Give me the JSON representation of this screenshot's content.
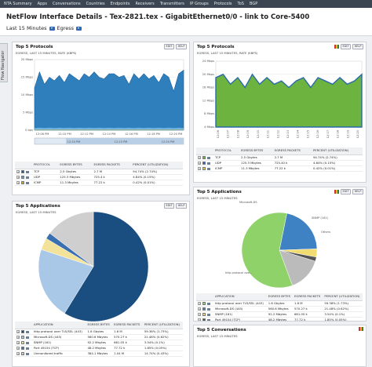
{
  "nav": [
    "NTA Summary",
    "Apps",
    "Conversations",
    "Countries",
    "Endpoints",
    "Receivers",
    "Transmitters",
    "IP Groups",
    "Protocols",
    "ToS",
    "BGP"
  ],
  "header": {
    "title": "NetFlow Interface Details - Tex-2821.tex - GigabitEthernet0/0 - link to Core-5400",
    "time_range": "Last 15 Minutes",
    "direction": "Egress"
  },
  "sidebar": {
    "label": "Flow Navigator"
  },
  "panels": {
    "p1": {
      "title": "Top 5 Protocols",
      "subtitle": "EGRESS, LAST 15 MINUTES, RATE (KBPS)",
      "edit": "EDIT",
      "help": "HELP",
      "y_labels": [
        "20 Mbps",
        "15 Mbps",
        "10 Mbps",
        "5 Mbps",
        "0 bps"
      ],
      "x_labels": [
        "12:08 PM",
        "12:10 PM",
        "12:12 PM",
        "12:14 PM",
        "12:16 PM",
        "12:18 PM",
        "12:20 PM"
      ],
      "nav_labels": [
        "12:10 PM",
        "12:15 PM",
        "12:20 PM"
      ],
      "headers": [
        "PROTOCOL",
        "EGRESS BYTES",
        "EGRESS PACKETS",
        "PERCENT (UTILIZATION)"
      ],
      "rows": [
        {
          "name": "TCP",
          "bytes": "2.5 Gbytes",
          "packets": "2.7 M",
          "pct": "94.74% (2.74%)",
          "color": "#1f5f99"
        },
        {
          "name": "UDP",
          "bytes": "125.3 Mbytes",
          "packets": "725.4 k",
          "pct": "4.84% (0.15%)",
          "color": "#5aa0d8"
        },
        {
          "name": "ICMP",
          "bytes": "11.3 Mbytes",
          "packets": "77.22 k",
          "pct": "0.42% (0.01%)",
          "color": "#c9a93c"
        }
      ]
    },
    "p2": {
      "title": "Top 5 Protocols",
      "subtitle": "EGRESS, LAST 15 MINUTES, RATE (KBPS)",
      "edit": "EDIT",
      "help": "HELP",
      "y_labels": [
        "24 Mbps",
        "20 Mbps",
        "16 Mbps",
        "12 Mbps",
        "8 Mbps",
        "4 Mbps"
      ],
      "x_labels": [
        "12:06",
        "12:07",
        "12:08",
        "12:09",
        "12:10",
        "12:11",
        "12:12",
        "12:13",
        "12:14",
        "12:15",
        "12:16",
        "12:17",
        "12:18",
        "12:19",
        "12:20"
      ],
      "headers": [
        "PROTOCOL",
        "EGRESS BYTES",
        "EGRESS PACKETS",
        "PERCENT (UTILIZATION)"
      ],
      "rows": [
        {
          "name": "TCP",
          "bytes": "2.5 Gbytes",
          "packets": "2.7 M",
          "pct": "94.74% (2.74%)",
          "color": "#6db33f"
        },
        {
          "name": "UDP",
          "bytes": "125.3 Mbytes",
          "packets": "725.40 k",
          "pct": "4.84% (0.15%)",
          "color": "#2a6aa8"
        },
        {
          "name": "ICMP",
          "bytes": "11.3 Mbytes",
          "packets": "77.22 k",
          "pct": "0.42% (0.01%)",
          "color": "#e8c93a"
        }
      ]
    },
    "p3": {
      "title": "Top 5 Applications",
      "subtitle": "EGRESS, LAST 15 MINUTES",
      "edit": "EDIT",
      "help": "HELP",
      "headers": [
        "APPLICATION",
        "EGRESS BYTES",
        "EGRESS PACKETS",
        "PERCENT (UTILIZATION)"
      ],
      "rows": [
        {
          "name": "http protocol over TLS/SSL (443)",
          "bytes": "1.6 Gbytes",
          "packets": "1.6 M",
          "pct": "59.38% (1.73%)",
          "color": "#1a4d80"
        },
        {
          "name": "Microsoft-DS (445)",
          "bytes": "560.6 Mbytes",
          "packets": "570.27 k",
          "pct": "21.48% (0.62%)",
          "color": "#a9c8e8"
        },
        {
          "name": "SNMP (161)",
          "bytes": "92.2 Mbytes",
          "packets": "661.05 k",
          "pct": "3.54% (0.1%)",
          "color": "#f2e29a"
        },
        {
          "name": "Port 49154 (TCP)",
          "bytes": "48.2 Mbytes",
          "packets": "77.72 k",
          "pct": "1.85% (0.05%)",
          "color": "#3a6fb0"
        },
        {
          "name": "Unmonitored traffic",
          "bytes": "384.1 Mbytes",
          "packets": "1.04 M",
          "pct": "14.74% (0.43%)",
          "color": "#cfcfcf"
        }
      ]
    },
    "p4": {
      "title": "Top 5 Applications",
      "subtitle": "EGRESS, LAST 15 MINUTES",
      "edit": "EDIT",
      "help": "HELP",
      "pie_labels": [
        "Microsoft-DS",
        "SNMP (161)",
        "Others",
        "http protocol ove..."
      ],
      "headers": [
        "APPLICATION",
        "EGRESS BYTES",
        "EGRESS PACKETS",
        "PERCENT (UTILIZATION)"
      ],
      "rows": [
        {
          "name": "http protocol over TLS/SSL (443)",
          "bytes": "1.6 Gbytes",
          "packets": "1.6 M",
          "pct": "59.38% (1.73%)",
          "color": "#8fd26a"
        },
        {
          "name": "Microsoft-DS (445)",
          "bytes": "560.6 Mbytes",
          "packets": "570.27 k",
          "pct": "21.48% (0.62%)",
          "color": "#3e82c4"
        },
        {
          "name": "SNMP (161)",
          "bytes": "92.2 Mbytes",
          "packets": "661.05 k",
          "pct": "3.54% (0.1%)",
          "color": "#f0dc70"
        },
        {
          "name": "Port 49154 (TCP)",
          "bytes": "48.2 Mbytes",
          "packets": "77.72 k",
          "pct": "1.85% (0.05%)",
          "color": "#555555"
        },
        {
          "name": "Unmonitored traffic",
          "bytes": "384.1 Mbytes",
          "packets": "1.04 M",
          "pct": "14.74% (0.43%)",
          "color": "#bbbbbb"
        }
      ]
    },
    "p5": {
      "title": "Top 5 Conversations",
      "subtitle": "EGRESS, LAST 15 MINUTES"
    }
  },
  "chart_data": [
    {
      "type": "area",
      "title": "Top 5 Protocols",
      "series": [
        {
          "name": "TCP",
          "values": [
            12,
            16.5,
            13,
            15,
            14,
            15.5,
            13.5,
            16,
            15,
            14,
            16,
            15,
            16.5,
            15,
            14.5,
            16,
            16,
            15,
            15.5,
            13,
            16,
            14.5,
            16,
            14.5,
            15.5,
            13.5,
            16,
            15,
            11,
            16,
            17
          ]
        },
        {
          "name": "UDP",
          "values": [
            0.6,
            0.7,
            0.6,
            0.7,
            0.6,
            0.7,
            0.6,
            0.7,
            0.6,
            0.7,
            0.6,
            0.7,
            0.6,
            0.7,
            0.6,
            0.7,
            0.6,
            0.7,
            0.6,
            0.7,
            0.6,
            0.7,
            0.6,
            0.7,
            0.6,
            0.7,
            0.6,
            0.7,
            0.6,
            0.7,
            0.6
          ]
        },
        {
          "name": "ICMP",
          "values": [
            0.1,
            0.1,
            0.1,
            0.1,
            0.1,
            0.1,
            0.1,
            0.1,
            0.1,
            0.1,
            0.1,
            0.1,
            0.1,
            0.1,
            0.1,
            0.1,
            0.1,
            0.1,
            0.1,
            0.1,
            0.1,
            0.1,
            0.1,
            0.1,
            0.1,
            0.1,
            0.1,
            0.1,
            0.1,
            0.1,
            0.1
          ]
        }
      ],
      "ylim": [
        0,
        20
      ]
    },
    {
      "type": "area",
      "title": "Top 5 Protocols",
      "series": [
        {
          "name": "TCP",
          "values": [
            19,
            20,
            17,
            19,
            16,
            20,
            17,
            19,
            17,
            18,
            16,
            18,
            19,
            16,
            19,
            18,
            17,
            19,
            17,
            18,
            20
          ]
        },
        {
          "name": "UDP",
          "values": [
            0.9,
            0.9,
            0.9,
            0.9,
            0.9,
            0.9,
            0.9,
            0.9,
            0.9,
            0.9,
            0.9,
            0.9,
            0.9,
            0.9,
            0.9,
            0.9,
            0.9,
            0.9,
            0.9,
            0.9,
            0.9
          ]
        }
      ],
      "ylim": [
        4,
        24
      ]
    },
    {
      "type": "pie",
      "title": "Top 5 Applications",
      "categories": [
        "http protocol over TLS/SSL (443)",
        "Microsoft-DS (445)",
        "SNMP (161)",
        "Port 49154 (TCP)",
        "Unmonitored traffic"
      ],
      "values": [
        59.38,
        21.48,
        3.54,
        1.85,
        14.74
      ]
    },
    {
      "type": "pie",
      "title": "Top 5 Applications",
      "categories": [
        "http protocol over TLS/SSL (443)",
        "Microsoft-DS (445)",
        "SNMP (161)",
        "Port 49154 (TCP)",
        "Unmonitored traffic"
      ],
      "values": [
        59.38,
        21.48,
        3.54,
        1.85,
        14.74
      ]
    }
  ]
}
